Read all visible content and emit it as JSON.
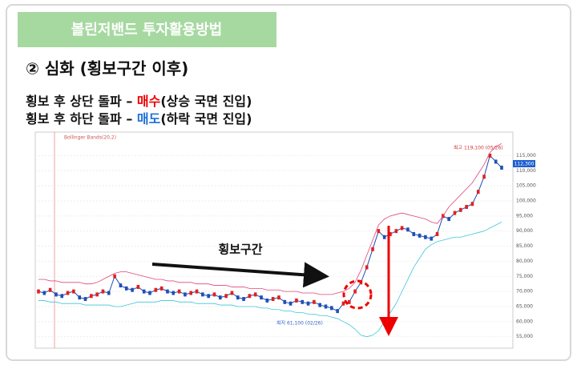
{
  "header": {
    "banner": "볼린저밴드 투자활용방법",
    "section": "② 심화 (횡보구간 이후)",
    "lines": [
      [
        "횡보 후 상단 돌파 – ",
        "매수",
        "(상승 국면 진입)"
      ],
      [
        "횡보 후 하단 돌파 – ",
        "매도",
        "(하락 국면 진입)"
      ]
    ]
  },
  "chart_data": {
    "type": "line",
    "legend": "Bollinger Bands(20,2)",
    "annotation": "횡보구간",
    "high_label": "최고 119,100 (05/26)",
    "low_label": "최저 61,100 (02/26)",
    "current_label": "112,300",
    "ylim": [
      52000,
      122000
    ],
    "yticks": [
      {
        "value": 55000,
        "label": "55,000"
      },
      {
        "value": 60000,
        "label": "60,000"
      },
      {
        "value": 65000,
        "label": "65,000"
      },
      {
        "value": 70000,
        "label": "70,000"
      },
      {
        "value": 75000,
        "label": "75,000"
      },
      {
        "value": 80000,
        "label": "80,000"
      },
      {
        "value": 85000,
        "label": "85,000"
      },
      {
        "value": 90000,
        "label": "90,000"
      },
      {
        "value": 95000,
        "label": "95,000"
      },
      {
        "value": 100000,
        "label": "100,000"
      },
      {
        "value": 105000,
        "label": "105,000"
      },
      {
        "value": 110000,
        "label": "110,000"
      },
      {
        "value": 115000,
        "label": "115,000"
      }
    ],
    "grid": true,
    "series": [
      {
        "color": "#1f4fb5",
        "values": [
          70000,
          69500,
          70500,
          69000,
          68500,
          69500,
          70000,
          68000,
          67500,
          68500,
          69000,
          70000,
          69500,
          75000,
          72000,
          71000,
          70500,
          71500,
          70000,
          69500,
          70500,
          71000,
          70000,
          69500,
          70000,
          69000,
          69500,
          70000,
          69000,
          68500,
          69000,
          68000,
          68500,
          69500,
          68000,
          67500,
          68500,
          69000,
          68000,
          67000,
          67500,
          68000,
          66500,
          66000,
          67000,
          66500,
          66000,
          66500,
          65500,
          65000,
          64500,
          63500,
          66000,
          66500,
          70000,
          73000,
          78000,
          84000,
          90000,
          88000,
          89000,
          90000,
          91000,
          90500,
          89000,
          88500,
          88000,
          87500,
          89000,
          95000,
          94000,
          96000,
          97000,
          98000,
          99000,
          103000,
          108000,
          115000,
          113000,
          111000
        ]
      },
      {
        "color": "#e0457a",
        "values": [
          74000,
          74000,
          73500,
          73500,
          73000,
          73000,
          73000,
          73000,
          72500,
          72500,
          73000,
          74000,
          75000,
          76000,
          76500,
          76500,
          76000,
          75500,
          75000,
          74500,
          74000,
          74000,
          73500,
          73500,
          73000,
          73000,
          73000,
          72500,
          72500,
          72500,
          72000,
          72000,
          72000,
          71500,
          71500,
          71500,
          71000,
          71000,
          71000,
          70500,
          70500,
          70500,
          70000,
          70000,
          70000,
          69500,
          69500,
          69500,
          69000,
          69000,
          69000,
          69500,
          70000,
          71000,
          73000,
          77000,
          82000,
          87000,
          92000,
          94000,
          95000,
          95500,
          96000,
          95500,
          95000,
          94500,
          94000,
          93000,
          92500,
          95000,
          98000,
          100000,
          102000,
          104000,
          106000,
          109000,
          112000,
          116000,
          118000,
          119000
        ]
      },
      {
        "color": "#3ec6d8",
        "values": [
          67000,
          67000,
          66500,
          66500,
          66000,
          66000,
          66000,
          66000,
          65500,
          65500,
          65500,
          65500,
          65500,
          65000,
          65000,
          65500,
          66000,
          66500,
          66500,
          66500,
          66500,
          67000,
          67000,
          67000,
          66500,
          66500,
          66500,
          66000,
          66000,
          66000,
          66000,
          65500,
          65500,
          65500,
          65000,
          65000,
          65000,
          65000,
          64500,
          64500,
          64000,
          64000,
          63500,
          63500,
          63000,
          63000,
          62500,
          62500,
          62000,
          62000,
          61500,
          61000,
          60000,
          59000,
          57500,
          55500,
          55000,
          55500,
          57000,
          60000,
          63000,
          66000,
          70000,
          74000,
          78000,
          81000,
          84000,
          85500,
          86500,
          87000,
          87500,
          88000,
          88000,
          88500,
          89000,
          89500,
          90000,
          91000,
          92000,
          93000
        ]
      }
    ]
  }
}
